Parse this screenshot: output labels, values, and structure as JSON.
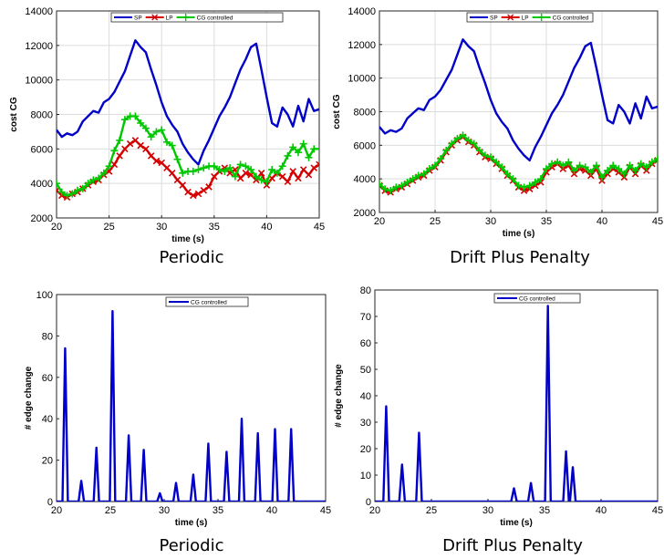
{
  "chart_data": [
    {
      "type": "line",
      "caption": "Periodic",
      "xlabel": "time (s)",
      "ylabel": "cost CG",
      "xlim": [
        20,
        45
      ],
      "ylim": [
        2000,
        14000
      ],
      "xticks": [
        20,
        25,
        30,
        35,
        40,
        45
      ],
      "yticks": [
        2000,
        4000,
        6000,
        8000,
        10000,
        12000,
        14000
      ],
      "grid": true,
      "legend_position": "top",
      "series": [
        {
          "name": "SP",
          "color": "#0000c8",
          "marker": "none",
          "x": [
            20,
            20.5,
            21,
            21.5,
            22,
            22.5,
            23,
            23.5,
            24,
            24.5,
            25,
            25.5,
            26,
            26.5,
            27,
            27.5,
            28,
            28.5,
            29,
            29.5,
            30,
            30.5,
            31,
            31.5,
            32,
            32.5,
            33,
            33.5,
            34,
            34.5,
            35,
            35.5,
            36,
            36.5,
            37,
            37.5,
            38,
            38.5,
            39,
            39.5,
            40,
            40.5,
            41,
            41.5,
            42,
            42.5,
            43,
            43.5,
            44,
            44.5,
            45
          ],
          "y": [
            7100,
            6700,
            6900,
            6800,
            7000,
            7600,
            7900,
            8200,
            8100,
            8700,
            8900,
            9300,
            9900,
            10500,
            11400,
            12300,
            11900,
            11600,
            10600,
            9700,
            8700,
            7900,
            7400,
            7000,
            6300,
            5800,
            5400,
            5100,
            5900,
            6500,
            7200,
            7900,
            8400,
            9000,
            9800,
            10600,
            11200,
            11900,
            12100,
            10600,
            9000,
            7500,
            7300,
            8400,
            8000,
            7300,
            8500,
            7600,
            8900,
            8200,
            8300
          ]
        },
        {
          "name": "LP",
          "color": "#d40000",
          "marker": "x",
          "x": [
            20,
            20.5,
            21,
            21.5,
            22,
            22.5,
            23,
            23.5,
            24,
            24.5,
            25,
            25.5,
            26,
            26.5,
            27,
            27.5,
            28,
            28.5,
            29,
            29.5,
            30,
            30.5,
            31,
            31.5,
            32,
            32.5,
            33,
            33.5,
            34,
            34.5,
            35,
            35.5,
            36,
            36.5,
            37,
            37.5,
            38,
            38.5,
            39,
            39.5,
            40,
            40.5,
            41,
            41.5,
            42,
            42.5,
            43,
            43.5,
            44,
            44.5,
            45
          ],
          "y": [
            3600,
            3300,
            3200,
            3400,
            3500,
            3700,
            3900,
            4100,
            4200,
            4500,
            4700,
            5100,
            5600,
            6000,
            6300,
            6500,
            6200,
            6000,
            5600,
            5300,
            5200,
            4900,
            4600,
            4200,
            3900,
            3500,
            3300,
            3400,
            3600,
            3800,
            4400,
            4700,
            4900,
            4600,
            4800,
            4300,
            4600,
            4500,
            4200,
            4600,
            3900,
            4300,
            4600,
            4400,
            4100,
            4700,
            4300,
            4800,
            4500,
            4900,
            5100
          ]
        },
        {
          "name": "CG controlled",
          "color": "#00c800",
          "marker": "+",
          "x": [
            20,
            20.5,
            21,
            21.5,
            22,
            22.5,
            23,
            23.5,
            24,
            24.5,
            25,
            25.5,
            26,
            26.5,
            27,
            27.5,
            28,
            28.5,
            29,
            29.5,
            30,
            30.5,
            31,
            31.5,
            32,
            32.5,
            33,
            33.5,
            34,
            34.5,
            35,
            35.5,
            36,
            36.5,
            37,
            37.5,
            38,
            38.5,
            39,
            39.5,
            40,
            40.5,
            41,
            41.5,
            42,
            42.5,
            43,
            43.5,
            44,
            44.5,
            45
          ],
          "y": [
            4000,
            3500,
            3300,
            3400,
            3600,
            3700,
            4000,
            4200,
            4300,
            4600,
            5000,
            5900,
            6500,
            7700,
            7900,
            7900,
            7500,
            7200,
            6700,
            7000,
            7100,
            6400,
            6200,
            5400,
            4600,
            4700,
            4700,
            4800,
            4900,
            5000,
            5000,
            4800,
            4700,
            4900,
            4400,
            5100,
            5000,
            4800,
            4400,
            4200,
            4100,
            4800,
            4600,
            5000,
            5600,
            6100,
            5800,
            6300,
            5500,
            6000,
            6000
          ]
        }
      ]
    },
    {
      "type": "line",
      "caption": "Drift Plus Penalty",
      "xlabel": "time (s)",
      "ylabel": "cost CG",
      "xlim": [
        20,
        45
      ],
      "ylim": [
        2000,
        14000
      ],
      "xticks": [
        20,
        25,
        30,
        35,
        40,
        45
      ],
      "yticks": [
        2000,
        4000,
        6000,
        8000,
        10000,
        12000,
        14000
      ],
      "grid": true,
      "legend_position": "top",
      "series": [
        {
          "name": "SP",
          "color": "#0000c8",
          "marker": "none",
          "x": [
            20,
            20.5,
            21,
            21.5,
            22,
            22.5,
            23,
            23.5,
            24,
            24.5,
            25,
            25.5,
            26,
            26.5,
            27,
            27.5,
            28,
            28.5,
            29,
            29.5,
            30,
            30.5,
            31,
            31.5,
            32,
            32.5,
            33,
            33.5,
            34,
            34.5,
            35,
            35.5,
            36,
            36.5,
            37,
            37.5,
            38,
            38.5,
            39,
            39.5,
            40,
            40.5,
            41,
            41.5,
            42,
            42.5,
            43,
            43.5,
            44,
            44.5,
            45
          ],
          "y": [
            7100,
            6700,
            6900,
            6800,
            7000,
            7600,
            7900,
            8200,
            8100,
            8700,
            8900,
            9300,
            9900,
            10500,
            11400,
            12300,
            11900,
            11600,
            10600,
            9700,
            8700,
            7900,
            7400,
            7000,
            6300,
            5800,
            5400,
            5100,
            5900,
            6500,
            7200,
            7900,
            8400,
            9000,
            9800,
            10600,
            11200,
            11900,
            12100,
            10600,
            9000,
            7500,
            7300,
            8400,
            8000,
            7300,
            8500,
            7600,
            8900,
            8200,
            8300
          ]
        },
        {
          "name": "LP",
          "color": "#d40000",
          "marker": "x",
          "x": [
            20,
            20.5,
            21,
            21.5,
            22,
            22.5,
            23,
            23.5,
            24,
            24.5,
            25,
            25.5,
            26,
            26.5,
            27,
            27.5,
            28,
            28.5,
            29,
            29.5,
            30,
            30.5,
            31,
            31.5,
            32,
            32.5,
            33,
            33.5,
            34,
            34.5,
            35,
            35.5,
            36,
            36.5,
            37,
            37.5,
            38,
            38.5,
            39,
            39.5,
            40,
            40.5,
            41,
            41.5,
            42,
            42.5,
            43,
            43.5,
            44,
            44.5,
            45
          ],
          "y": [
            3600,
            3300,
            3200,
            3400,
            3500,
            3700,
            3900,
            4100,
            4200,
            4500,
            4700,
            5100,
            5600,
            6000,
            6300,
            6500,
            6200,
            6000,
            5600,
            5300,
            5200,
            4900,
            4600,
            4200,
            3900,
            3500,
            3300,
            3400,
            3600,
            3800,
            4400,
            4700,
            4900,
            4600,
            4800,
            4300,
            4600,
            4500,
            4200,
            4600,
            3900,
            4300,
            4600,
            4400,
            4100,
            4700,
            4300,
            4800,
            4500,
            4900,
            5100
          ]
        },
        {
          "name": "CG controlled",
          "color": "#00c800",
          "marker": "+",
          "x": [
            20,
            20.5,
            21,
            21.5,
            22,
            22.5,
            23,
            23.5,
            24,
            24.5,
            25,
            25.5,
            26,
            26.5,
            27,
            27.5,
            28,
            28.5,
            29,
            29.5,
            30,
            30.5,
            31,
            31.5,
            32,
            32.5,
            33,
            33.5,
            34,
            34.5,
            35,
            35.5,
            36,
            36.5,
            37,
            37.5,
            38,
            38.5,
            39,
            39.5,
            40,
            40.5,
            41,
            41.5,
            42,
            42.5,
            43,
            43.5,
            44,
            44.5,
            45
          ],
          "y": [
            3700,
            3400,
            3300,
            3500,
            3600,
            3800,
            4000,
            4200,
            4300,
            4600,
            4800,
            5200,
            5700,
            6100,
            6400,
            6600,
            6300,
            6100,
            5700,
            5400,
            5300,
            5000,
            4700,
            4300,
            4000,
            3600,
            3500,
            3600,
            3800,
            4000,
            4600,
            4900,
            5000,
            4800,
            5000,
            4500,
            4800,
            4700,
            4400,
            4800,
            4100,
            4500,
            4800,
            4600,
            4300,
            4800,
            4500,
            4900,
            4700,
            5000,
            5200
          ]
        }
      ]
    },
    {
      "type": "line",
      "caption": "Periodic",
      "xlabel": "time (s)",
      "ylabel": "# edge change",
      "xlim": [
        20,
        45
      ],
      "ylim": [
        0,
        100
      ],
      "xticks": [
        20,
        25,
        30,
        35,
        40,
        45
      ],
      "yticks": [
        0,
        20,
        40,
        60,
        80,
        100
      ],
      "grid": false,
      "legend_position": "top-right",
      "series": [
        {
          "name": "CG controlled",
          "color": "#0000c8",
          "marker": "none",
          "spikes": [
            [
              20.8,
              74
            ],
            [
              22.3,
              10
            ],
            [
              23.7,
              26
            ],
            [
              25.2,
              92
            ],
            [
              26.7,
              32
            ],
            [
              28.1,
              25
            ],
            [
              29.6,
              4
            ],
            [
              31.1,
              9
            ],
            [
              32.7,
              13
            ],
            [
              34.1,
              28
            ],
            [
              35.8,
              24
            ],
            [
              37.2,
              40
            ],
            [
              38.7,
              33
            ],
            [
              40.3,
              35
            ],
            [
              41.8,
              35
            ]
          ]
        }
      ]
    },
    {
      "type": "line",
      "caption": "Drift Plus Penalty",
      "xlabel": "time (s)",
      "ylabel": "# edge change",
      "xlim": [
        20,
        45
      ],
      "ylim": [
        0,
        80
      ],
      "xticks": [
        20,
        25,
        30,
        35,
        40,
        45
      ],
      "yticks": [
        0,
        10,
        20,
        30,
        40,
        50,
        60,
        70,
        80
      ],
      "grid": false,
      "legend_position": "top-right",
      "series": [
        {
          "name": "CG controlled",
          "color": "#0000c8",
          "marker": "none",
          "spikes": [
            [
              21.0,
              36
            ],
            [
              22.4,
              14
            ],
            [
              23.9,
              26
            ],
            [
              32.3,
              5
            ],
            [
              33.8,
              7
            ],
            [
              35.3,
              74
            ],
            [
              36.9,
              19
            ],
            [
              37.5,
              13
            ]
          ]
        }
      ]
    }
  ]
}
